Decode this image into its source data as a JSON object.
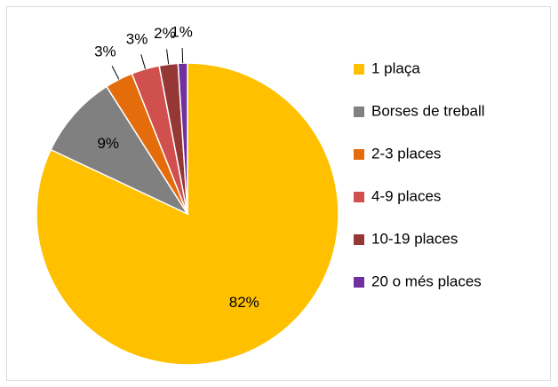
{
  "chart_data": {
    "type": "pie",
    "categories": [
      "1 plaça",
      "Borses de treball",
      "2-3 places",
      "4-9 places",
      "10-19 places",
      "20 o més places"
    ],
    "values": [
      82,
      9,
      3,
      3,
      2,
      1
    ],
    "value_labels": [
      "82%",
      "9%",
      "3%",
      "3%",
      "2%",
      "1%"
    ],
    "colors": [
      "#ffc000",
      "#808080",
      "#e46c0a",
      "#d0504d",
      "#953735",
      "#7030a0"
    ],
    "legend": "right"
  }
}
